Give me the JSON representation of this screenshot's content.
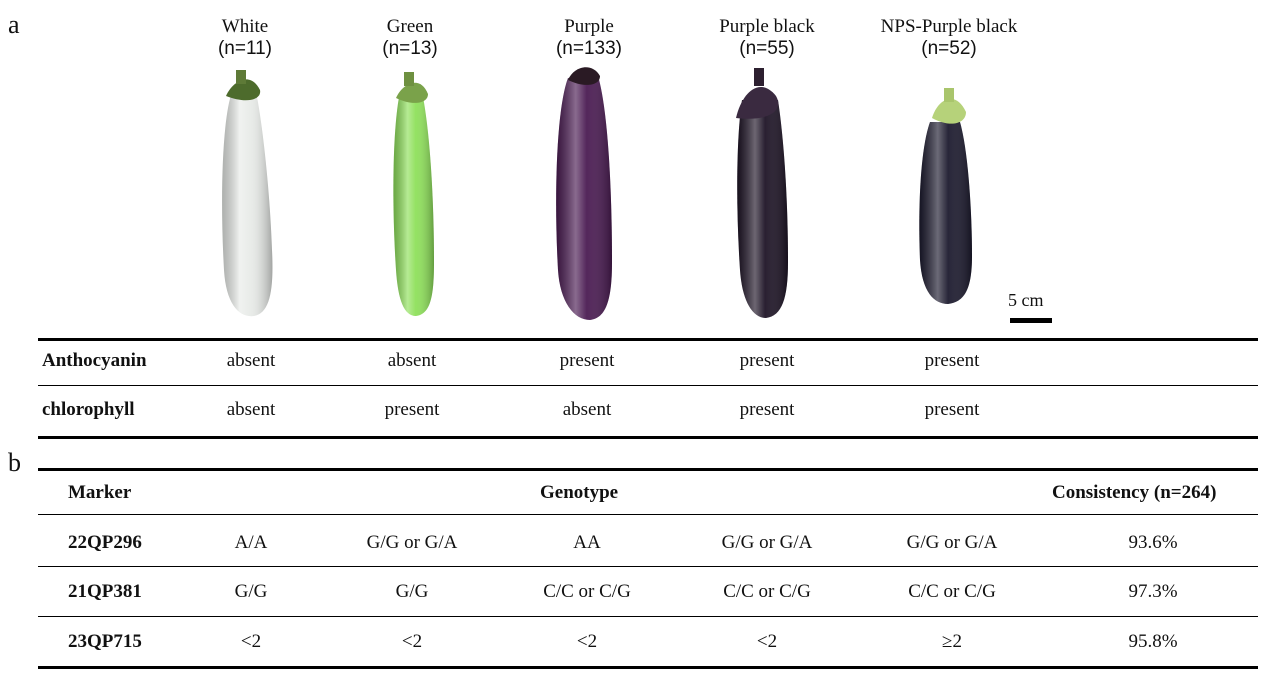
{
  "panel_a": {
    "label": "a",
    "columns": [
      {
        "name": "White",
        "n": "(n=11)"
      },
      {
        "name": "Green",
        "n": "(n=13)"
      },
      {
        "name": "Purple",
        "n": "(n=133)"
      },
      {
        "name": "Purple black",
        "n": "(n=55)"
      },
      {
        "name": "NPS-Purple black",
        "n": "(n=52)"
      }
    ],
    "fruit_colors": [
      "#e8ebe8",
      "#8ee05a",
      "#4a1b52",
      "#1e1426",
      "#1c1a2e"
    ],
    "scale_bar": "5 cm",
    "rows": [
      {
        "label": "Anthocyanin",
        "values": [
          "absent",
          "absent",
          "present",
          "present",
          "present"
        ]
      },
      {
        "label": "chlorophyll",
        "values": [
          "absent",
          "present",
          "absent",
          "present",
          "present"
        ]
      }
    ]
  },
  "panel_b": {
    "label": "b",
    "headers": {
      "marker": "Marker",
      "genotype": "Genotype",
      "consistency": "Consistency (n=264)"
    },
    "rows": [
      {
        "marker": "22QP296",
        "genotypes": [
          "A/A",
          "G/G or G/A",
          "AA",
          "G/G or G/A",
          "G/G or G/A"
        ],
        "consistency": "93.6%"
      },
      {
        "marker": "21QP381",
        "genotypes": [
          "G/G",
          "G/G",
          "C/C or C/G",
          "C/C or C/G",
          "C/C or C/G"
        ],
        "consistency": "97.3%"
      },
      {
        "marker": "23QP715",
        "genotypes": [
          "<2",
          "<2",
          "<2",
          "<2",
          "≥2"
        ],
        "consistency": "95.8%"
      }
    ]
  }
}
